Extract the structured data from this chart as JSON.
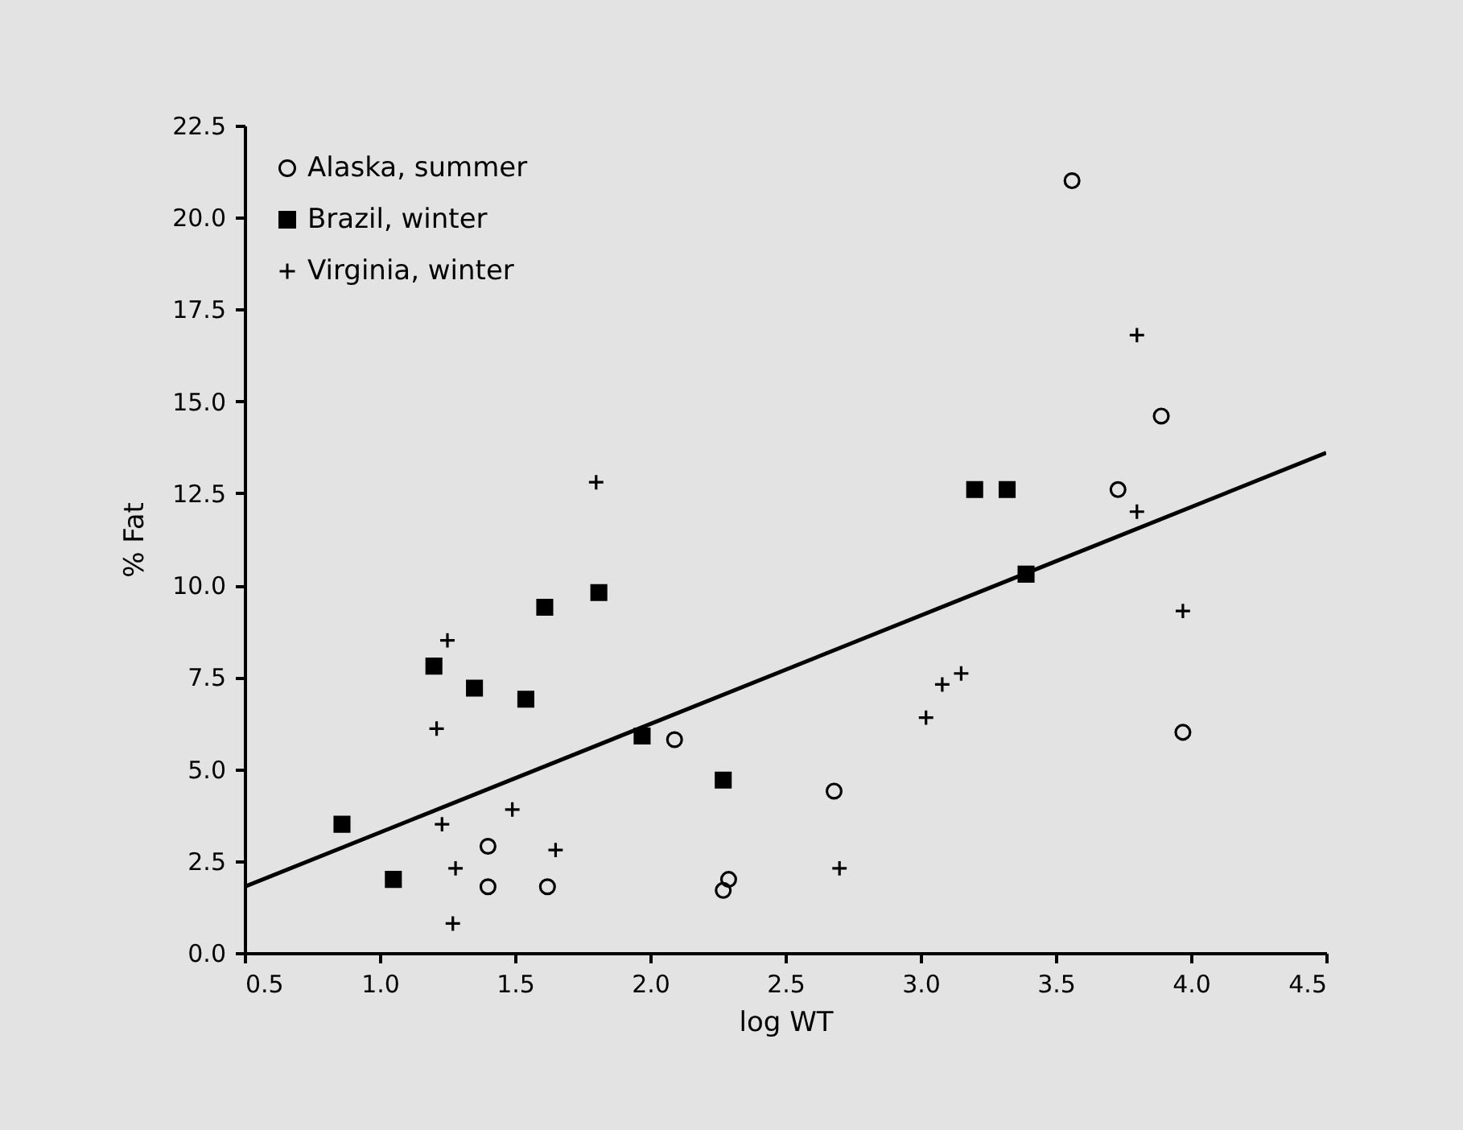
{
  "chart_data": {
    "type": "scatter",
    "xlabel": "log WT",
    "ylabel": "% Fat",
    "xlim": [
      0.5,
      4.5
    ],
    "xticks": [
      {
        "value": 0.5,
        "label": "0.5"
      },
      {
        "value": 1,
        "label": "1.0"
      },
      {
        "value": 1.5,
        "label": "1.5"
      },
      {
        "value": 2,
        "label": "2.0"
      },
      {
        "value": 2.5,
        "label": "2.5"
      },
      {
        "value": 3,
        "label": "3.0"
      },
      {
        "value": 3.5,
        "label": "3.5"
      },
      {
        "value": 4,
        "label": "4.0"
      },
      {
        "value": 4.5,
        "label": "4.5"
      }
    ],
    "ylim": [
      0,
      22.5
    ],
    "yticks": [
      {
        "value": 0,
        "label": "0.0"
      },
      {
        "value": 2.5,
        "label": "2.5"
      },
      {
        "value": 5,
        "label": "5.0"
      },
      {
        "value": 7.5,
        "label": "7.5"
      },
      {
        "value": 10,
        "label": "10.0"
      },
      {
        "value": 12.5,
        "label": "12.5"
      },
      {
        "value": 15,
        "label": "15.0"
      },
      {
        "value": 17.5,
        "label": "17.5"
      },
      {
        "value": 20,
        "label": "20.0"
      },
      {
        "value": 22.5,
        "label": "22.5"
      }
    ],
    "legend": "top left",
    "series": [
      {
        "name": "Alaska, summer",
        "marker": "circle",
        "color": "#000000",
        "x": [
          1.4,
          1.4,
          1.62,
          2.09,
          2.27,
          2.29,
          2.68,
          3.56,
          3.73,
          3.89,
          3.97
        ],
        "values": [
          2.9,
          1.8,
          1.8,
          5.8,
          1.7,
          2.0,
          4.4,
          21.0,
          12.6,
          14.6,
          6.0
        ]
      },
      {
        "name": "Brazil, winter",
        "marker": "square",
        "color": "#000000",
        "x": [
          0.86,
          1.05,
          1.2,
          1.35,
          1.54,
          1.61,
          1.81,
          1.97,
          2.27,
          3.2,
          3.32,
          3.39
        ],
        "values": [
          3.5,
          2.0,
          7.8,
          7.2,
          6.9,
          9.4,
          9.8,
          5.9,
          4.7,
          12.6,
          12.6,
          10.3
        ]
      },
      {
        "name": "Virginia, winter",
        "marker": "cross",
        "color": "#000000",
        "x": [
          1.25,
          1.21,
          1.23,
          1.28,
          1.27,
          1.49,
          1.65,
          1.8,
          2.7,
          3.02,
          3.08,
          3.15,
          3.8,
          3.8,
          3.97
        ],
        "values": [
          8.5,
          6.1,
          3.5,
          2.3,
          0.8,
          3.9,
          2.8,
          12.8,
          2.3,
          6.4,
          7.3,
          7.6,
          16.8,
          12.0,
          9.3
        ]
      },
      {
        "type": "line",
        "color": "#000000",
        "x": [
          0.5,
          4.5
        ],
        "values": [
          1.8,
          13.6
        ]
      }
    ]
  }
}
